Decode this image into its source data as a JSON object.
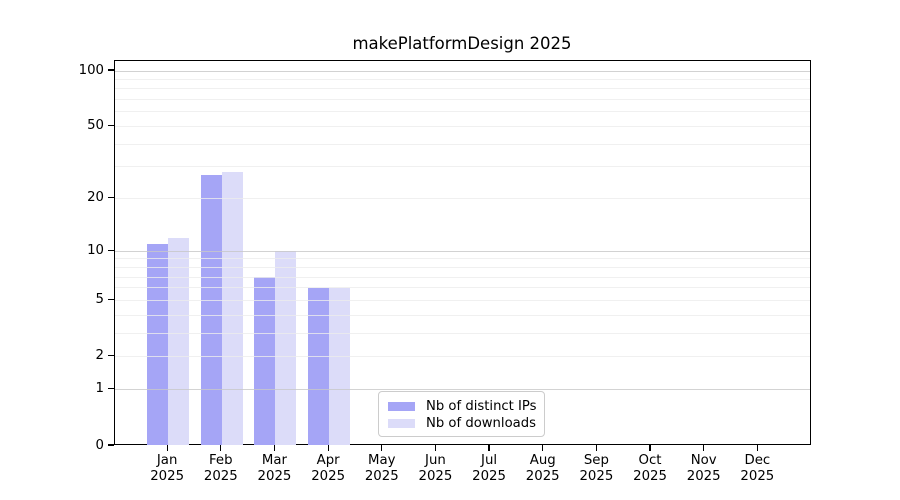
{
  "title": "makePlatformDesign 2025",
  "colors": {
    "bar_distinct_ips": "#a5a5f6",
    "bar_downloads": "#dcdcf9",
    "grid_major": "#c8c8c8",
    "grid_minor": "#ededed",
    "axis": "#000000",
    "legend_border": "#cccccc"
  },
  "legend": {
    "items": [
      {
        "key": "distinct_ips",
        "label": "Nb of distinct IPs"
      },
      {
        "key": "downloads",
        "label": "Nb of downloads"
      }
    ]
  },
  "chart_data": {
    "type": "bar",
    "title": "makePlatformDesign 2025",
    "months": [
      "Jan",
      "Feb",
      "Mar",
      "Apr",
      "May",
      "Jun",
      "Jul",
      "Aug",
      "Sep",
      "Oct",
      "Nov",
      "Dec"
    ],
    "year": "2025",
    "series": [
      {
        "name": "Nb of distinct IPs",
        "color": "#a5a5f6",
        "values": [
          11,
          27,
          7,
          6,
          0,
          0,
          0,
          0,
          0,
          0,
          0,
          0
        ]
      },
      {
        "name": "Nb of downloads",
        "color": "#dcdcf9",
        "values": [
          12,
          28,
          10,
          6,
          0,
          0,
          0,
          0,
          0,
          0,
          0,
          0
        ]
      }
    ],
    "y_scale": "log1p",
    "y_tick_values": [
      0,
      1,
      2,
      5,
      10,
      20,
      50,
      100
    ],
    "y_tick_labels": [
      "0",
      "1",
      "2",
      "5",
      "10",
      "20",
      "50",
      "100"
    ],
    "y_major_gridlines": [
      1,
      10,
      100
    ],
    "y_minor_gridlines": [
      2,
      3,
      4,
      5,
      6,
      7,
      8,
      9,
      20,
      30,
      40,
      50,
      60,
      70,
      80,
      90
    ],
    "ylim": [
      0,
      113
    ],
    "grid": "horizontal",
    "legend_position": "lower center"
  }
}
